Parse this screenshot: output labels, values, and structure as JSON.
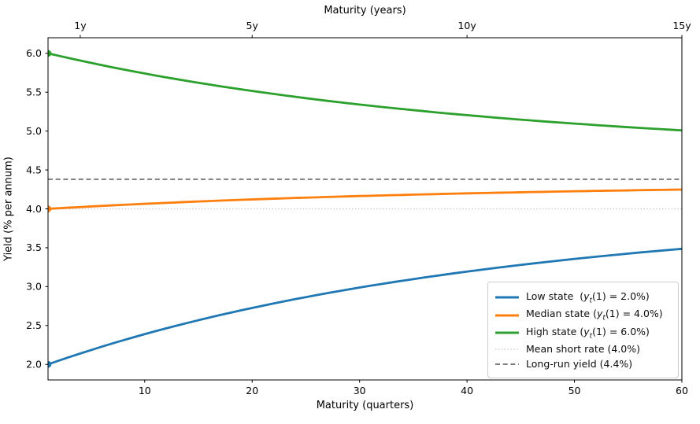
{
  "chart_data": {
    "type": "line",
    "top_xlabel": "Maturity (years)",
    "xlabel": "Maturity (quarters)",
    "ylabel": "Yield (% per annum)",
    "xlim": [
      1,
      60
    ],
    "ylim": [
      1.8,
      6.2
    ],
    "grid": false,
    "xticks": [
      10,
      20,
      30,
      40,
      50,
      60
    ],
    "top_xticks": [
      {
        "quarter": 4,
        "label": "1y"
      },
      {
        "quarter": 20,
        "label": "5y"
      },
      {
        "quarter": 40,
        "label": "10y"
      },
      {
        "quarter": 60,
        "label": "15y"
      }
    ],
    "yticks": [
      "2.0",
      "2.5",
      "3.0",
      "3.5",
      "4.0",
      "4.5",
      "5.0",
      "5.5",
      "6.0"
    ],
    "x": [
      1,
      2,
      3,
      4,
      5,
      6,
      7,
      8,
      9,
      10,
      11,
      12,
      13,
      14,
      15,
      16,
      17,
      18,
      19,
      20,
      21,
      22,
      23,
      24,
      25,
      26,
      27,
      28,
      29,
      30,
      31,
      32,
      33,
      34,
      35,
      36,
      37,
      38,
      39,
      40,
      41,
      42,
      43,
      44,
      45,
      46,
      47,
      48,
      49,
      50,
      51,
      52,
      53,
      54,
      55,
      56,
      57,
      58,
      59,
      60
    ],
    "series": [
      {
        "name": "Low state",
        "start_short_rate": "2.0%",
        "color": "#1f77b4",
        "style": "solid",
        "start_marker": true,
        "values": [
          2.0,
          2.048,
          2.095,
          2.14,
          2.184,
          2.228,
          2.27,
          2.31,
          2.35,
          2.389,
          2.427,
          2.464,
          2.499,
          2.534,
          2.568,
          2.602,
          2.634,
          2.665,
          2.696,
          2.726,
          2.755,
          2.784,
          2.811,
          2.839,
          2.865,
          2.891,
          2.916,
          2.94,
          2.964,
          2.988,
          3.011,
          3.033,
          3.055,
          3.076,
          3.096,
          3.117,
          3.136,
          3.156,
          3.175,
          3.193,
          3.211,
          3.229,
          3.246,
          3.263,
          3.279,
          3.295,
          3.311,
          3.326,
          3.341,
          3.356,
          3.37,
          3.384,
          3.398,
          3.411,
          3.425,
          3.438,
          3.45,
          3.462,
          3.474,
          3.486
        ]
      },
      {
        "name": "Median state",
        "start_short_rate": "4.0%",
        "color": "#ff7f0e",
        "style": "solid",
        "start_marker": true,
        "values": [
          4.0,
          4.008,
          4.016,
          4.023,
          4.031,
          4.038,
          4.045,
          4.052,
          4.058,
          4.065,
          4.071,
          4.077,
          4.083,
          4.089,
          4.095,
          4.1,
          4.106,
          4.111,
          4.116,
          4.121,
          4.126,
          4.131,
          4.135,
          4.14,
          4.144,
          4.148,
          4.153,
          4.157,
          4.161,
          4.165,
          4.168,
          4.172,
          4.176,
          4.179,
          4.183,
          4.186,
          4.189,
          4.193,
          4.196,
          4.199,
          4.202,
          4.205,
          4.208,
          4.21,
          4.213,
          4.216,
          4.218,
          4.221,
          4.224,
          4.226,
          4.228,
          4.231,
          4.233,
          4.235,
          4.237,
          4.24,
          4.242,
          4.244,
          4.246,
          4.248
        ]
      },
      {
        "name": "High state",
        "start_short_rate": "6.0%",
        "color": "#2ca02c",
        "style": "solid",
        "start_marker": true,
        "values": [
          6.0,
          5.968,
          5.937,
          5.907,
          5.877,
          5.848,
          5.82,
          5.793,
          5.766,
          5.741,
          5.715,
          5.691,
          5.667,
          5.644,
          5.621,
          5.599,
          5.577,
          5.556,
          5.536,
          5.516,
          5.497,
          5.478,
          5.459,
          5.441,
          5.423,
          5.406,
          5.389,
          5.373,
          5.357,
          5.342,
          5.326,
          5.311,
          5.297,
          5.283,
          5.269,
          5.256,
          5.242,
          5.229,
          5.217,
          5.205,
          5.193,
          5.181,
          5.169,
          5.158,
          5.147,
          5.137,
          5.126,
          5.116,
          5.106,
          5.096,
          5.087,
          5.077,
          5.068,
          5.059,
          5.05,
          5.042,
          5.033,
          5.025,
          5.017,
          5.009
        ]
      }
    ],
    "reference_lines": [
      {
        "name": "Mean short rate",
        "label_value": "4.0%",
        "y": 4.0,
        "style": "dotted",
        "color": "#c8c8c8"
      },
      {
        "name": "Long-run yield",
        "label_value": "4.4%",
        "y": 4.38,
        "style": "dashed",
        "color": "#555555"
      }
    ],
    "legend": {
      "location": "lower right",
      "items": [
        {
          "text": "Low state  (y_t(1) = 2.0%)",
          "color": "#1f77b4",
          "style": "solid",
          "linewidth": 3
        },
        {
          "text": "Median state (y_t(1) = 4.0%)",
          "color": "#ff7f0e",
          "style": "solid",
          "linewidth": 3
        },
        {
          "text": "High state (y_t(1) = 6.0%)",
          "color": "#2ca02c",
          "style": "solid",
          "linewidth": 3
        },
        {
          "text": "Mean short rate (4.0%)",
          "color": "#c8c8c8",
          "style": "dotted",
          "linewidth": 1.5
        },
        {
          "text": "Long-run yield (4.4%)",
          "color": "#555555",
          "style": "dashed",
          "linewidth": 1.5
        }
      ]
    }
  }
}
